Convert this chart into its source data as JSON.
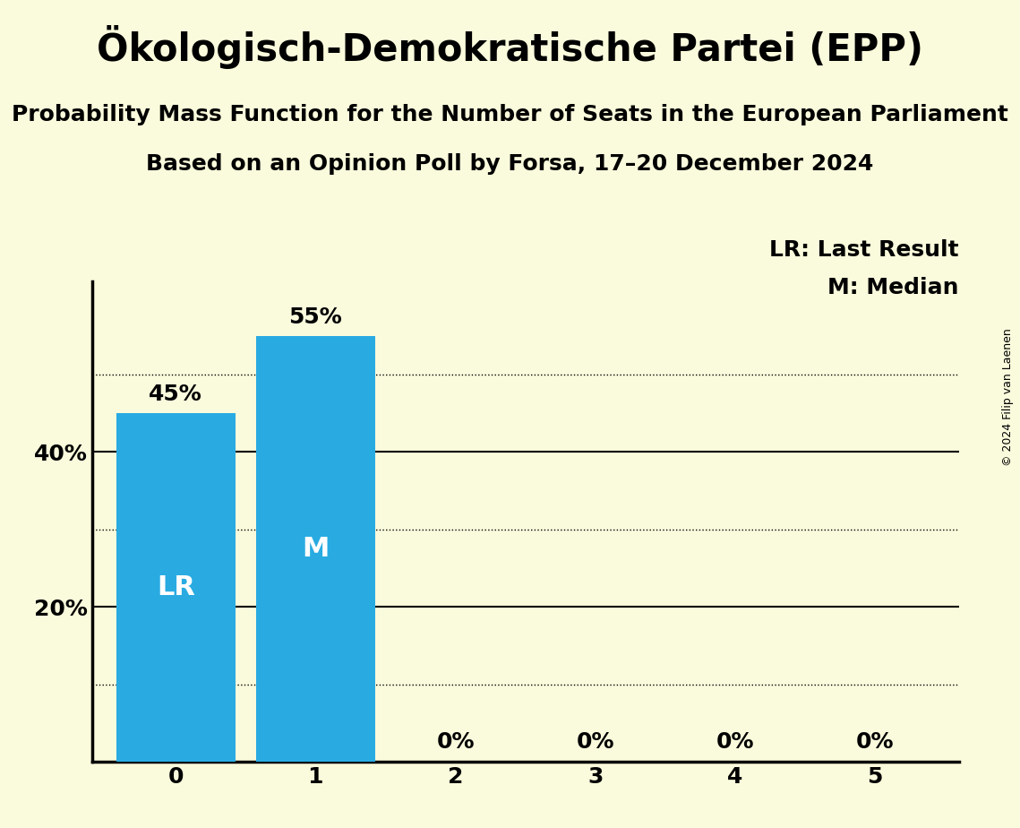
{
  "title": "Ökologisch-Demokratische Partei (EPP)",
  "subtitle1": "Probability Mass Function for the Number of Seats in the European Parliament",
  "subtitle2": "Based on an Opinion Poll by Forsa, 17–20 December 2024",
  "copyright": "© 2024 Filip van Laenen",
  "categories": [
    0,
    1,
    2,
    3,
    4,
    5
  ],
  "values": [
    0.45,
    0.55,
    0.0,
    0.0,
    0.0,
    0.0
  ],
  "bar_color": "#29ABE2",
  "bar_labels": [
    "45%",
    "55%",
    "0%",
    "0%",
    "0%",
    "0%"
  ],
  "lr_bar": 0,
  "median_bar": 1,
  "lr_label": "LR",
  "median_label": "M",
  "lr_legend": "LR: Last Result",
  "median_legend": "M: Median",
  "background_color": "#FAFADC",
  "ytick_solid": [
    0.2,
    0.4
  ],
  "ytick_dotted": [
    0.1,
    0.3,
    0.5
  ],
  "ylim": [
    0,
    0.62
  ],
  "title_fontsize": 30,
  "subtitle_fontsize": 18,
  "bar_label_fontsize": 18,
  "axis_label_fontsize": 18,
  "inner_label_fontsize": 22,
  "legend_fontsize": 18,
  "copyright_fontsize": 9
}
